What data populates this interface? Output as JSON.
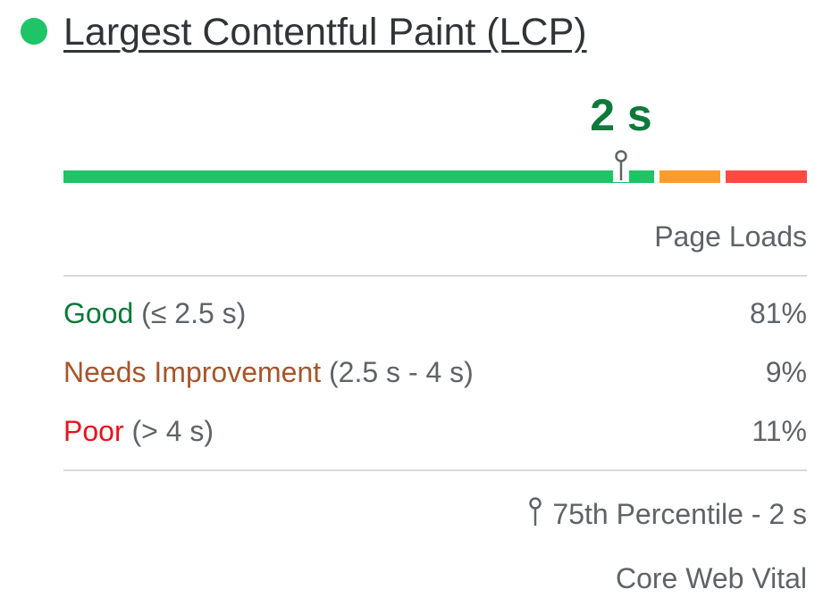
{
  "metric": {
    "title": "Largest Contentful Paint (LCP)",
    "status_color": "#1ec465",
    "value": "2 s",
    "value_color": "#0d7a3a",
    "p75_position_fraction": 0.75
  },
  "distribution": {
    "header": "Page Loads",
    "rows": [
      {
        "label": "Good",
        "range": "(≤ 2.5 s)",
        "percent": "81%",
        "fraction": 0.81,
        "color": "#0d7a3a",
        "bar_color": "#1ec465"
      },
      {
        "label": "Needs Improvement",
        "range": "(2.5 s - 4 s)",
        "percent": "9%",
        "fraction": 0.09,
        "color": "#a8552a",
        "bar_color": "#ff9b2b"
      },
      {
        "label": "Poor",
        "range": "(> 4 s)",
        "percent": "11%",
        "fraction": 0.11,
        "color": "#e8141b",
        "bar_color": "#ff4a43"
      }
    ]
  },
  "footer": {
    "percentile_icon": "pin-icon",
    "percentile_text": "75th Percentile - 2 s",
    "core_label": "Core Web Vital"
  }
}
